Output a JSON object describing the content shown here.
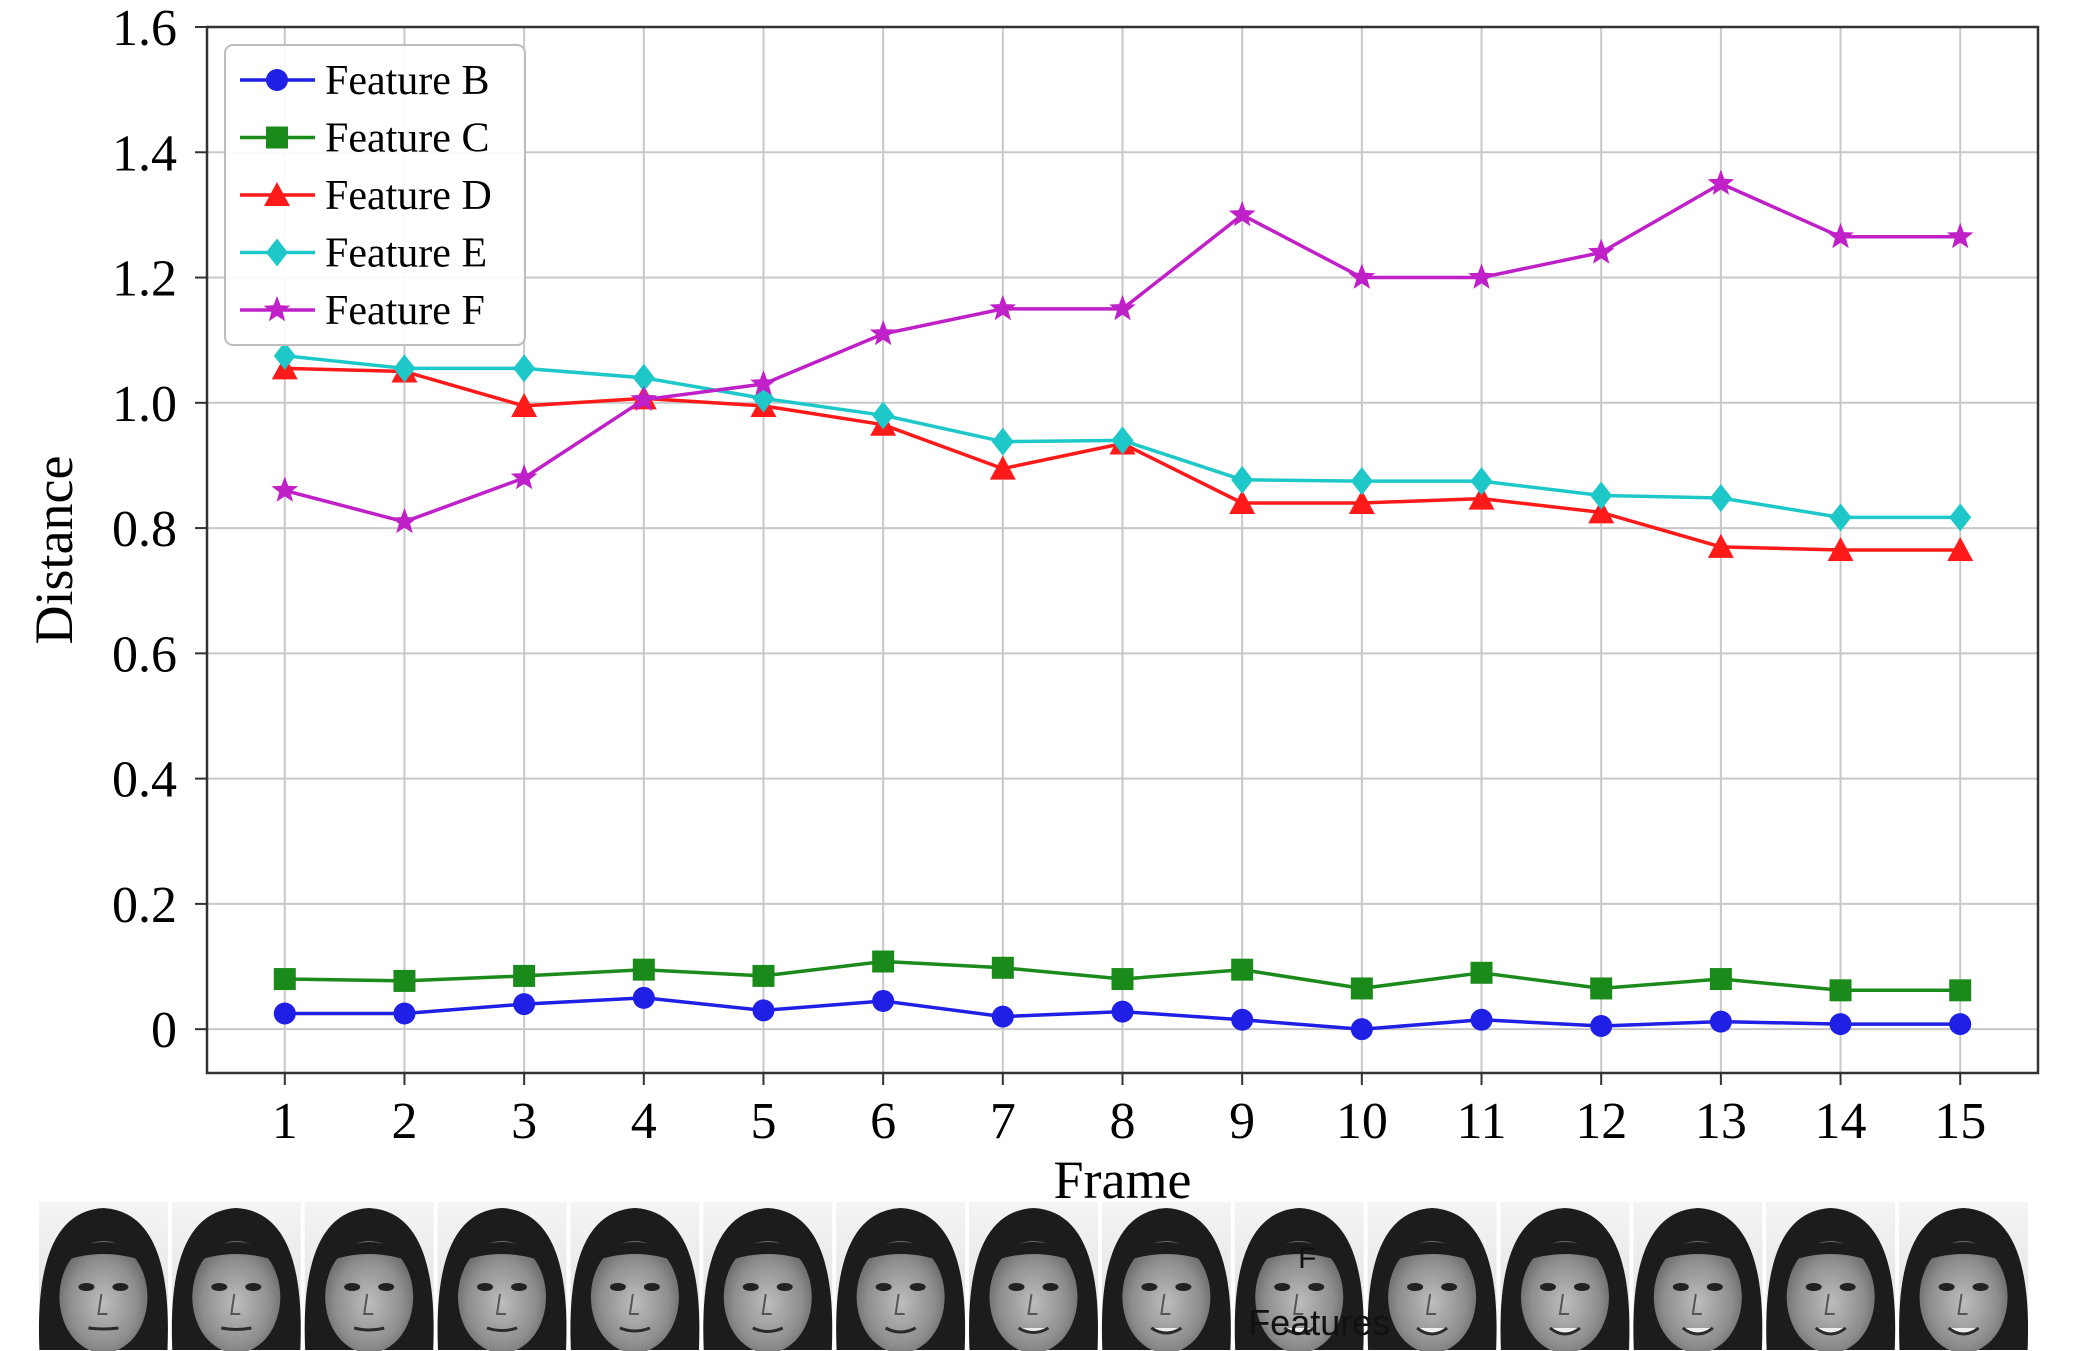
{
  "chart_data": {
    "type": "line",
    "title": "",
    "xlabel": "Frame",
    "ylabel": "Distance",
    "x": [
      1,
      2,
      3,
      4,
      5,
      6,
      7,
      8,
      9,
      10,
      11,
      12,
      13,
      14,
      15
    ],
    "xlim": [
      0.35,
      15.65
    ],
    "ylim": [
      -0.07,
      1.6
    ],
    "yticks": [
      0,
      0.2,
      0.4,
      0.6,
      0.8,
      1.0,
      1.2,
      1.4,
      1.6
    ],
    "ytick_labels": [
      "0",
      "0.2",
      "0.4",
      "0.6",
      "0.8",
      "1.0",
      "1.2",
      "1.4",
      "1.6"
    ],
    "grid": true,
    "legend_position": "top-left",
    "series": [
      {
        "name": "Feature B",
        "color": "#1f1fe6",
        "marker": "circle",
        "values": [
          0.025,
          0.025,
          0.04,
          0.05,
          0.03,
          0.045,
          0.02,
          0.028,
          0.015,
          0.0,
          0.015,
          0.005,
          0.012,
          0.008,
          0.008
        ]
      },
      {
        "name": "Feature C",
        "color": "#1a8a1a",
        "marker": "square",
        "values": [
          0.08,
          0.077,
          0.085,
          0.095,
          0.085,
          0.108,
          0.098,
          0.08,
          0.095,
          0.065,
          0.09,
          0.065,
          0.08,
          0.062,
          0.062
        ]
      },
      {
        "name": "Feature D",
        "color": "#ff1a1a",
        "marker": "triangle",
        "values": [
          1.055,
          1.05,
          0.995,
          1.007,
          0.995,
          0.965,
          0.895,
          0.935,
          0.84,
          0.84,
          0.847,
          0.825,
          0.77,
          0.765,
          0.765
        ]
      },
      {
        "name": "Feature E",
        "color": "#1ec8c8",
        "marker": "diamond",
        "values": [
          1.075,
          1.055,
          1.055,
          1.04,
          1.007,
          0.98,
          0.938,
          0.94,
          0.877,
          0.875,
          0.875,
          0.852,
          0.848,
          0.817,
          0.817
        ]
      },
      {
        "name": "Feature F",
        "color": "#c020c8",
        "marker": "star",
        "values": [
          0.86,
          0.81,
          0.88,
          1.005,
          1.03,
          1.11,
          1.15,
          1.15,
          1.3,
          1.2,
          1.2,
          1.24,
          1.35,
          1.265,
          1.265
        ]
      }
    ]
  },
  "faces_strip": {
    "count": 15,
    "overlay_text_top": "F",
    "overlay_text_bottom": "Features"
  }
}
